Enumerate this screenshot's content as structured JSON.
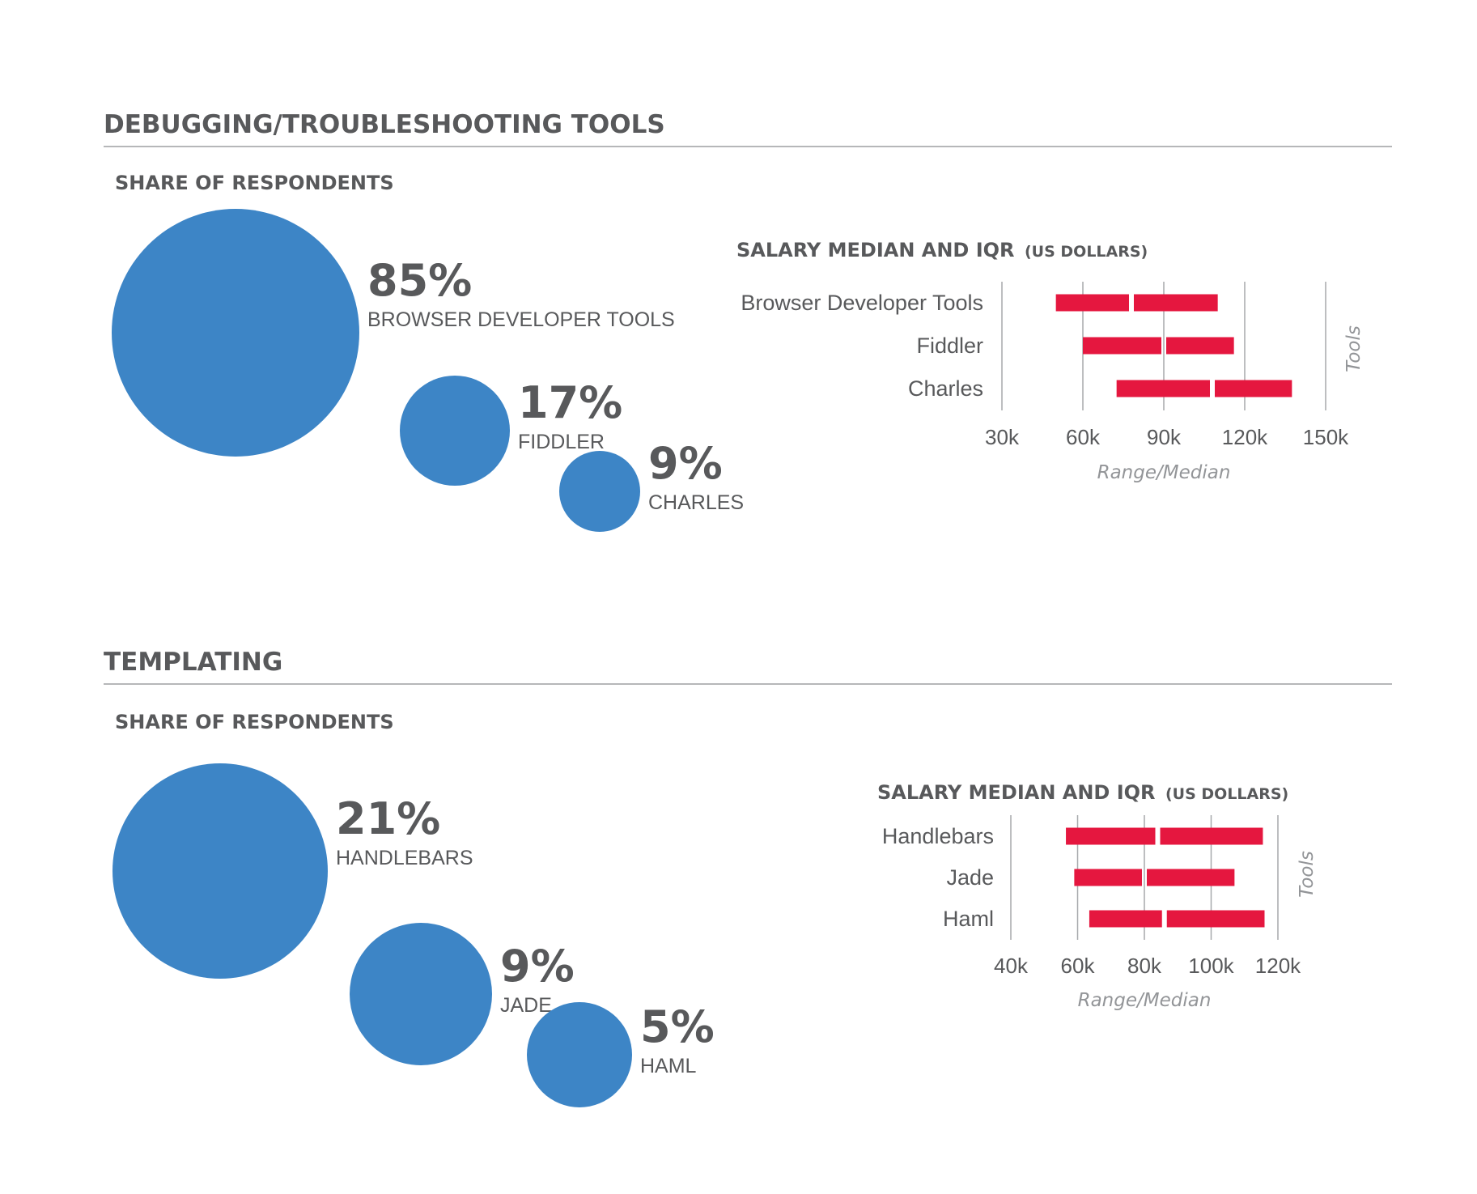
{
  "colors": {
    "bubble": "#3d85c6",
    "bar": "#e5173f",
    "text": "#58595b",
    "muted": "#939598"
  },
  "sections": [
    {
      "title": "DEBUGGING/TROUBLESHOOTING TOOLS",
      "share_title": "SHARE OF RESPONDENTS",
      "salary_title": "SALARY MEDIAN AND IQR",
      "salary_unit": "(US DOLLARS)"
    },
    {
      "title": "TEMPLATING",
      "share_title": "SHARE OF RESPONDENTS",
      "salary_title": "SALARY MEDIAN AND IQR",
      "salary_unit": "(US DOLLARS)"
    }
  ],
  "chart_data": [
    {
      "type": "bubble",
      "title": "SHARE OF RESPONDENTS",
      "items": [
        {
          "label": "BROWSER DEVELOPER TOOLS",
          "value": 85,
          "display": "85%"
        },
        {
          "label": "FIDDLER",
          "value": 17,
          "display": "17%"
        },
        {
          "label": "CHARLES",
          "value": 9,
          "display": "9%"
        }
      ]
    },
    {
      "type": "range-bar",
      "title": "SALARY MEDIAN AND IQR",
      "subtitle": "(US DOLLARS)",
      "xlabel": "Range/Median",
      "ylabel": "Tools",
      "xlim": [
        30000,
        150000
      ],
      "ticks": [
        30000,
        60000,
        90000,
        120000,
        150000
      ],
      "tick_labels": [
        "30k",
        "60k",
        "90k",
        "120k",
        "150k"
      ],
      "categories": [
        "Browser Developer Tools",
        "Fiddler",
        "Charles"
      ],
      "q1": [
        50000,
        60000,
        72500
      ],
      "median": [
        78000,
        90000,
        108000
      ],
      "q3": [
        110000,
        116000,
        137500
      ]
    },
    {
      "type": "bubble",
      "title": "SHARE OF RESPONDENTS",
      "items": [
        {
          "label": "HANDLEBARS",
          "value": 21,
          "display": "21%"
        },
        {
          "label": "JADE",
          "value": 9,
          "display": "9%"
        },
        {
          "label": "HAML",
          "value": 5,
          "display": "5%"
        }
      ]
    },
    {
      "type": "range-bar",
      "title": "SALARY MEDIAN AND IQR",
      "subtitle": "(US DOLLARS)",
      "xlabel": "Range/Median",
      "ylabel": "Tools",
      "xlim": [
        40000,
        120000
      ],
      "ticks": [
        40000,
        60000,
        80000,
        100000,
        120000
      ],
      "tick_labels": [
        "40k",
        "60k",
        "80k",
        "100k",
        "120k"
      ],
      "categories": [
        "Handlebars",
        "Jade",
        "Haml"
      ],
      "q1": [
        56500,
        59000,
        63500
      ],
      "median": [
        84000,
        80000,
        86000
      ],
      "q3": [
        115500,
        107000,
        116000
      ]
    }
  ]
}
